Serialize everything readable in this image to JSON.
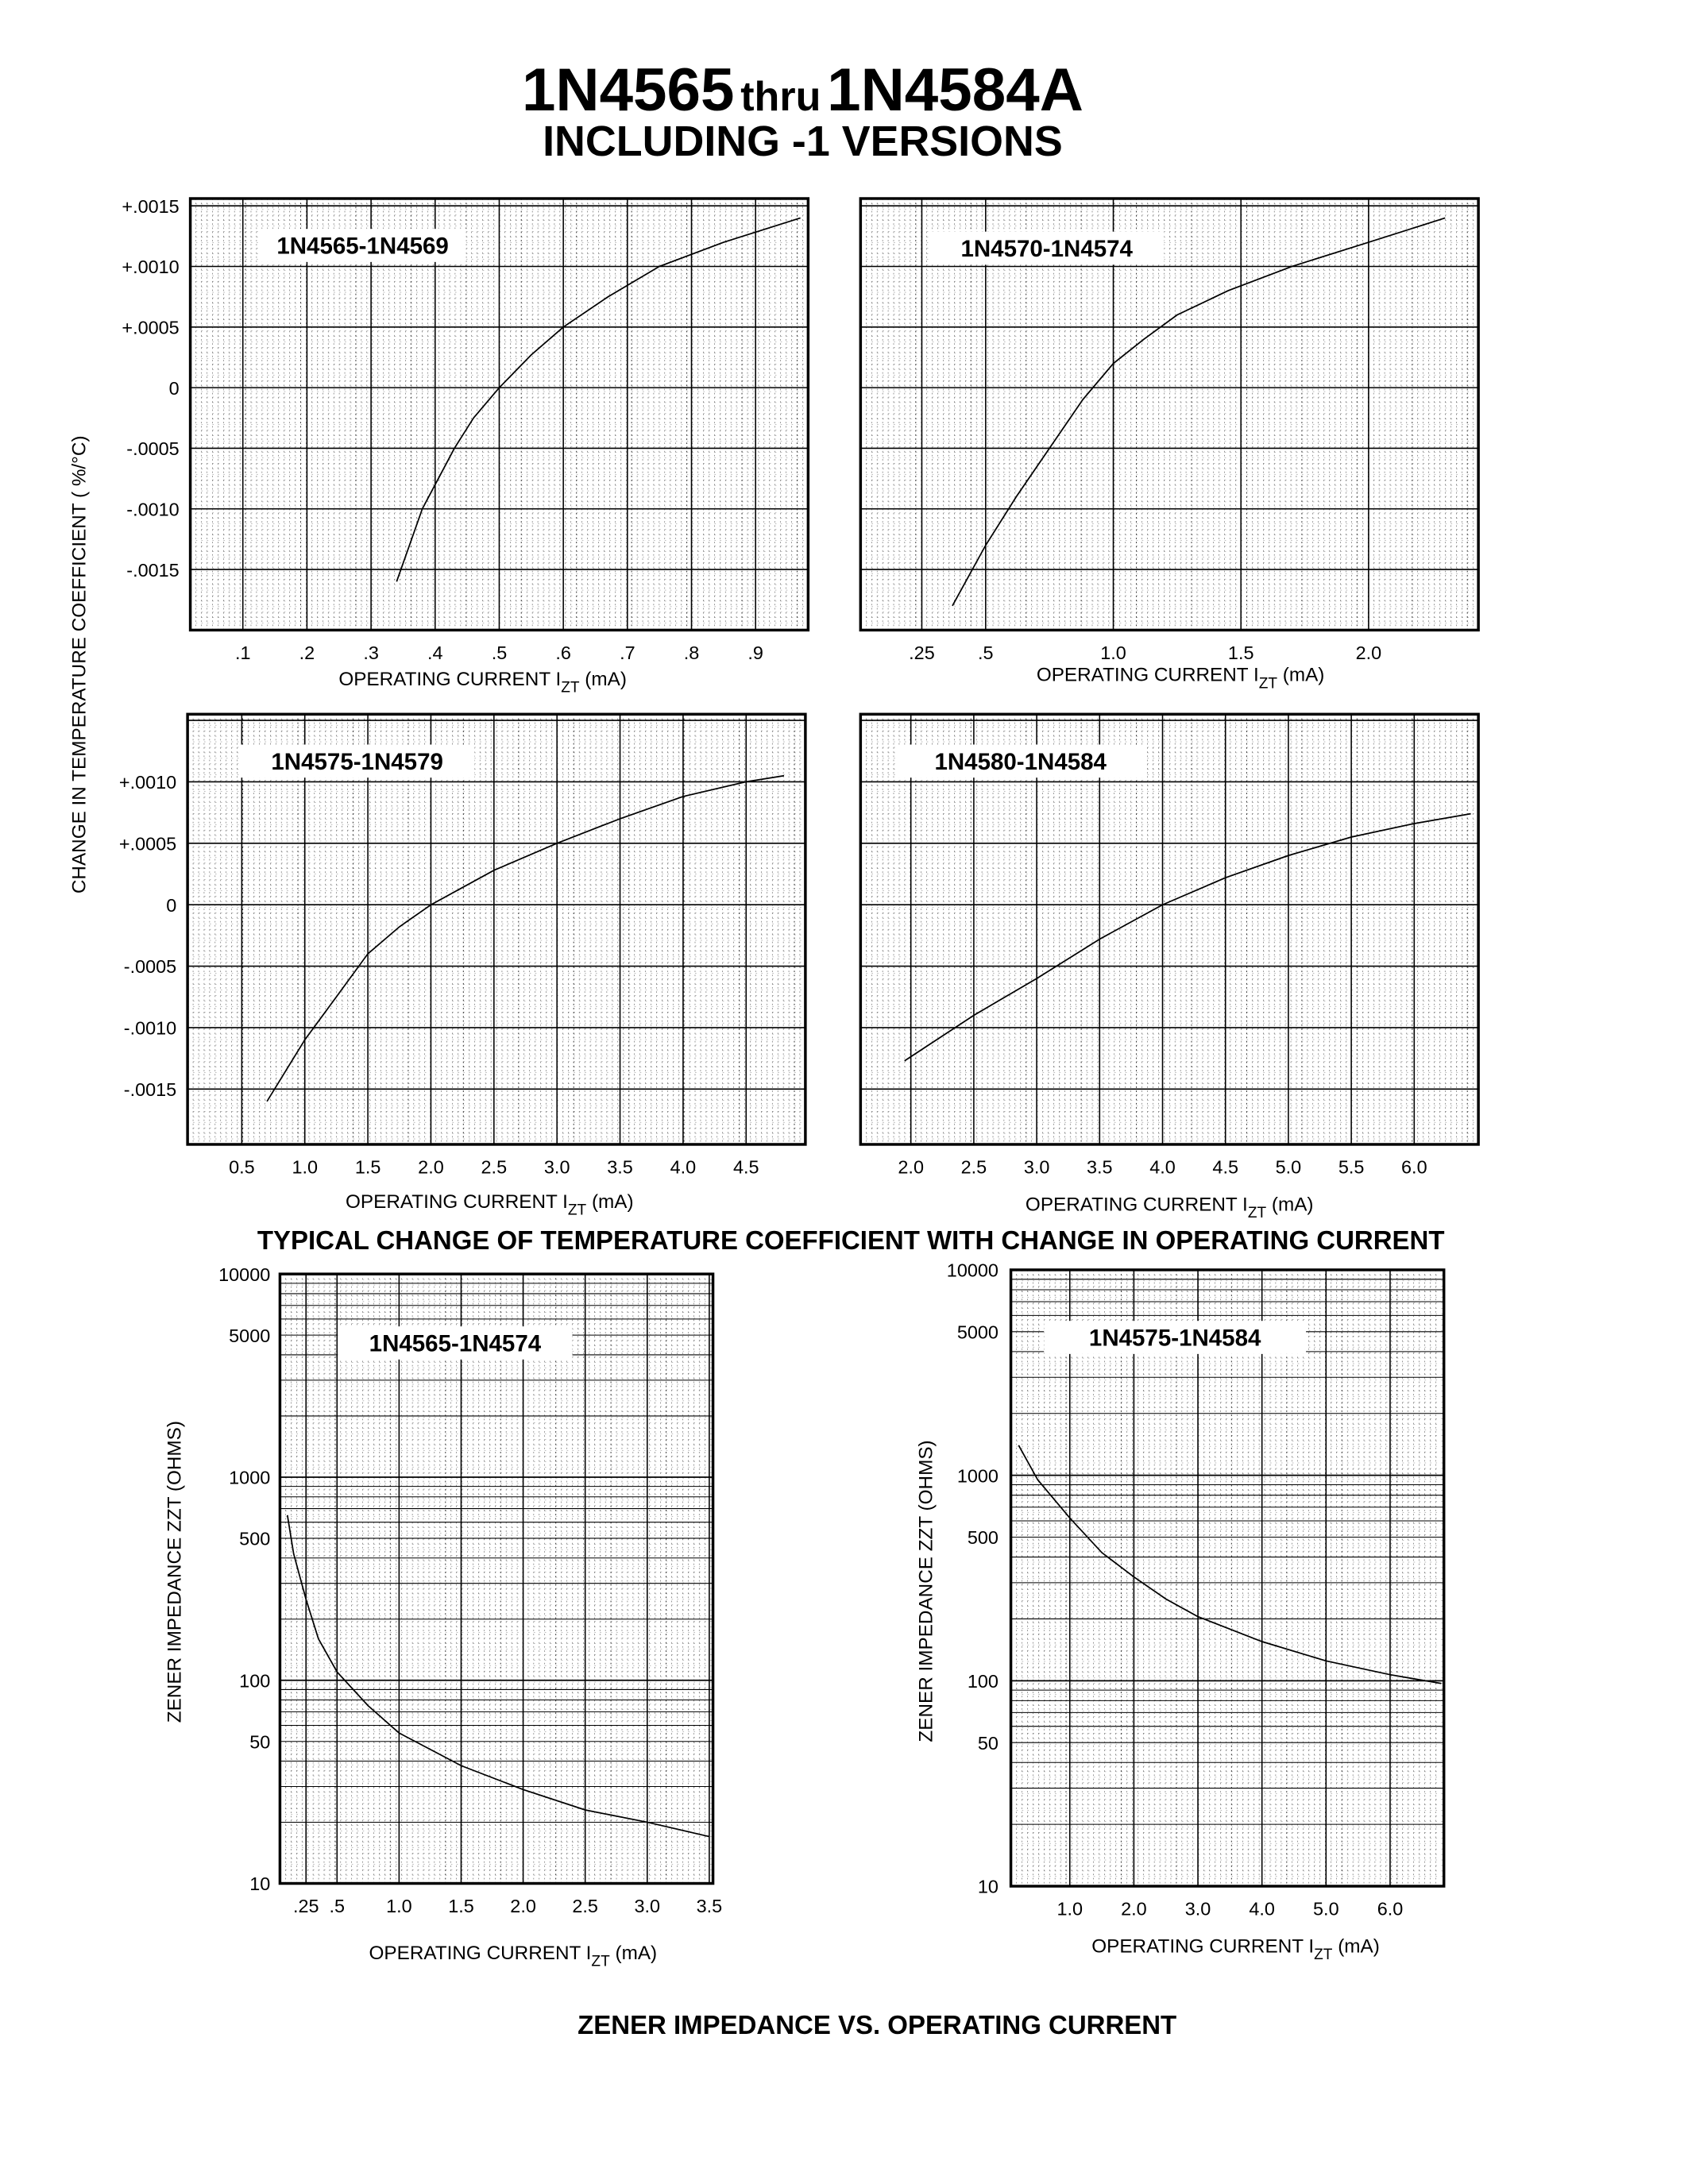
{
  "header": {
    "title_part1": "1N4565",
    "title_part2": "thru",
    "title_part3": "1N4584A",
    "subtitle": "INCLUDING -1 VERSIONS"
  },
  "tc_section": {
    "ylabel": "CHANGE IN TEMPERATURE COEFFICIENT ( %/°C)",
    "caption": "TYPICAL CHANGE OF TEMPERATURE COEFFICIENT WITH CHANGE IN OPERATING CURRENT"
  },
  "zz_section": {
    "caption": "ZENER IMPEDANCE VS. OPERATING CURRENT"
  },
  "chart_data": [
    {
      "type": "line",
      "label": "1N4565-1N4569",
      "xlabel": "OPERATING CURRENT I",
      "xlabel_sub": "ZT",
      "xlabel_unit": "(mA)",
      "xlim": [
        0.018,
        0.982
      ],
      "ylim": [
        -0.002,
        0.00156
      ],
      "yscale": "linear",
      "grid": true,
      "x_ticks": [
        0.1,
        0.2,
        0.3,
        0.4,
        0.5,
        0.6,
        0.7,
        0.8,
        0.9
      ],
      "x_tick_labels": [
        ".1",
        ".2",
        ".3",
        ".4",
        ".5",
        ".6",
        ".7",
        ".8",
        ".9"
      ],
      "y_ticks": [
        0.0015,
        0.001,
        0.0005,
        0,
        -0.0005,
        -0.001,
        -0.0015
      ],
      "y_tick_labels": [
        "+.0015",
        "+.0010",
        "+.0005",
        "0",
        "-.0005",
        "-.0010",
        "-.0015"
      ],
      "series": [
        {
          "x": [
            0.34,
            0.36,
            0.38,
            0.41,
            0.43,
            0.46,
            0.5,
            0.55,
            0.6,
            0.67,
            0.75,
            0.85,
            0.97
          ],
          "y": [
            -0.0016,
            -0.0013,
            -0.001,
            -0.0007,
            -0.0005,
            -0.00025,
            0,
            0.00027,
            0.0005,
            0.00075,
            0.001,
            0.0012,
            0.0014
          ]
        }
      ]
    },
    {
      "type": "line",
      "label": "1N4570-1N4574",
      "xlabel": "OPERATING CURRENT I",
      "xlabel_sub": "ZT",
      "xlabel_unit": "(mA)",
      "xlim": [
        0.01,
        2.43
      ],
      "ylim": [
        -0.002,
        0.00156
      ],
      "yscale": "linear",
      "grid": true,
      "x_ticks": [
        0.25,
        0.5,
        1.0,
        1.5,
        2.0
      ],
      "x_tick_labels": [
        ".25",
        ".5",
        "1.0",
        "1.5",
        "2.0"
      ],
      "y_ticks": [],
      "y_tick_labels": [],
      "series": [
        {
          "x": [
            0.37,
            0.5,
            0.62,
            0.75,
            0.88,
            1.0,
            1.12,
            1.25,
            1.45,
            1.7,
            2.0,
            2.3
          ],
          "y": [
            -0.0018,
            -0.0013,
            -0.0009,
            -0.0005,
            -0.0001,
            0.0002,
            0.0004,
            0.0006,
            0.0008,
            0.001,
            0.0012,
            0.0014
          ]
        }
      ]
    },
    {
      "type": "line",
      "label": "1N4575-1N4579",
      "xlabel": "OPERATING CURRENT I",
      "xlabel_sub": "ZT",
      "xlabel_unit": "(mA)",
      "xlim": [
        0.07,
        4.97
      ],
      "ylim": [
        -0.00195,
        0.00155
      ],
      "yscale": "linear",
      "grid": true,
      "x_ticks": [
        0.5,
        1.0,
        1.5,
        2.0,
        2.5,
        3.0,
        3.5,
        4.0,
        4.5
      ],
      "x_tick_labels": [
        "0.5",
        "1.0",
        "1.5",
        "2.0",
        "2.5",
        "3.0",
        "3.5",
        "4.0",
        "4.5"
      ],
      "y_ticks": [
        0.001,
        0.0005,
        0,
        -0.0005,
        -0.001,
        -0.0015
      ],
      "y_tick_labels": [
        "+.0010",
        "+.0005",
        "0",
        "-.0005",
        "-.0010",
        "-.0015"
      ],
      "series": [
        {
          "x": [
            0.7,
            0.85,
            1.0,
            1.25,
            1.5,
            1.75,
            2.0,
            2.5,
            3.0,
            3.5,
            4.0,
            4.5,
            4.8
          ],
          "y": [
            -0.0016,
            -0.00135,
            -0.0011,
            -0.00075,
            -0.0004,
            -0.00018,
            0,
            0.00028,
            0.0005,
            0.0007,
            0.00088,
            0.001,
            0.00105
          ]
        }
      ]
    },
    {
      "type": "line",
      "label": "1N4580-1N4584",
      "xlabel": "OPERATING CURRENT I",
      "xlabel_sub": "ZT",
      "xlabel_unit": "(mA)",
      "xlim": [
        1.6,
        6.51
      ],
      "ylim": [
        -0.00195,
        0.00155
      ],
      "yscale": "linear",
      "grid": true,
      "x_ticks": [
        2.0,
        2.5,
        3.0,
        3.5,
        4.0,
        4.5,
        5.0,
        5.5,
        6.0
      ],
      "x_tick_labels": [
        "2.0",
        "2.5",
        "3.0",
        "3.5",
        "4.0",
        "4.5",
        "5.0",
        "5.5",
        "6.0"
      ],
      "y_ticks": [],
      "y_tick_labels": [],
      "series": [
        {
          "x": [
            1.95,
            2.5,
            3.0,
            3.5,
            4.0,
            4.5,
            5.0,
            5.5,
            6.0,
            6.45
          ],
          "y": [
            -0.00127,
            -0.0009,
            -0.0006,
            -0.00028,
            0,
            0.00022,
            0.0004,
            0.00055,
            0.00066,
            0.00074
          ]
        }
      ]
    },
    {
      "type": "line",
      "label": "1N4565-1N4574",
      "xlabel": "OPERATING CURRENT I",
      "xlabel_sub": "ZT",
      "xlabel_unit": "(mA)",
      "ylabel": "ZENER IMPEDANCE ZZT (OHMS)",
      "xlim": [
        0.04,
        3.53
      ],
      "ylim": [
        10,
        10000
      ],
      "yscale": "log",
      "grid": true,
      "x_ticks": [
        0.25,
        0.5,
        1.0,
        1.5,
        2.0,
        2.5,
        3.0,
        3.5
      ],
      "x_tick_labels": [
        ".25",
        ".5",
        "1.0",
        "1.5",
        "2.0",
        "2.5",
        "3.0",
        "3.5"
      ],
      "y_ticks": [
        10000,
        5000,
        1000,
        500,
        100,
        50,
        10
      ],
      "y_tick_labels": [
        "10000",
        "5000",
        "1000",
        "500",
        "100",
        "50",
        "10"
      ],
      "series": [
        {
          "x": [
            0.1,
            0.15,
            0.25,
            0.35,
            0.5,
            0.75,
            1.0,
            1.5,
            2.0,
            2.5,
            3.0,
            3.5
          ],
          "y": [
            650,
            420,
            250,
            160,
            110,
            75,
            55,
            38,
            29,
            23,
            20,
            17
          ]
        }
      ]
    },
    {
      "type": "line",
      "label": "1N4575-1N4584",
      "xlabel": "OPERATING CURRENT I",
      "xlabel_sub": "ZT",
      "xlabel_unit": "(mA)",
      "ylabel": "ZENER IMPEDANCE ZZT (OHMS)",
      "xlim": [
        0.08,
        6.84
      ],
      "ylim": [
        10,
        10000
      ],
      "yscale": "log",
      "grid": true,
      "x_ticks": [
        1.0,
        2.0,
        3.0,
        4.0,
        5.0,
        6.0
      ],
      "x_tick_labels": [
        "1.0",
        "2.0",
        "3.0",
        "4.0",
        "5.0",
        "6.0"
      ],
      "y_ticks": [
        10000,
        5000,
        1000,
        500,
        100,
        50,
        10
      ],
      "y_tick_labels": [
        "10000",
        "5000",
        "1000",
        "500",
        "100",
        "50",
        "10"
      ],
      "series": [
        {
          "x": [
            0.2,
            0.5,
            1.0,
            1.5,
            2.0,
            2.5,
            3.0,
            4.0,
            5.0,
            6.0,
            6.8
          ],
          "y": [
            1400,
            950,
            620,
            420,
            320,
            250,
            205,
            155,
            125,
            107,
            97
          ]
        }
      ]
    }
  ]
}
